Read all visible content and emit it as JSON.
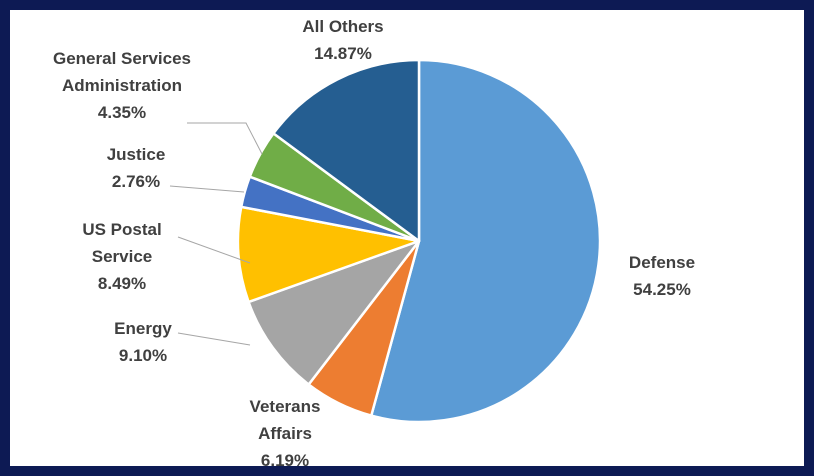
{
  "chart_data": {
    "type": "pie",
    "slices": [
      {
        "label_lines": [
          "Defense"
        ],
        "value": 54.25,
        "pct_text": "54.25%",
        "color": "#5b9bd5"
      },
      {
        "label_lines": [
          "Veterans",
          "Affairs"
        ],
        "value": 6.19,
        "pct_text": "6.19%",
        "color": "#ed7d31"
      },
      {
        "label_lines": [
          "Energy"
        ],
        "value": 9.1,
        "pct_text": "9.10%",
        "color": "#a5a5a5"
      },
      {
        "label_lines": [
          "US Postal",
          "Service"
        ],
        "value": 8.49,
        "pct_text": "8.49%",
        "color": "#ffc000"
      },
      {
        "label_lines": [
          "Justice"
        ],
        "value": 2.76,
        "pct_text": "2.76%",
        "color": "#4472c4"
      },
      {
        "label_lines": [
          "General Services",
          "Administration"
        ],
        "value": 4.35,
        "pct_text": "4.35%",
        "color": "#70ad47"
      },
      {
        "label_lines": [
          "All Others"
        ],
        "value": 14.87,
        "pct_text": "14.87%",
        "color": "#255e91"
      }
    ],
    "start_angle_deg": 0,
    "direction": "clockwise",
    "label_color": "#404040",
    "frame_color": "#0d1a54"
  }
}
